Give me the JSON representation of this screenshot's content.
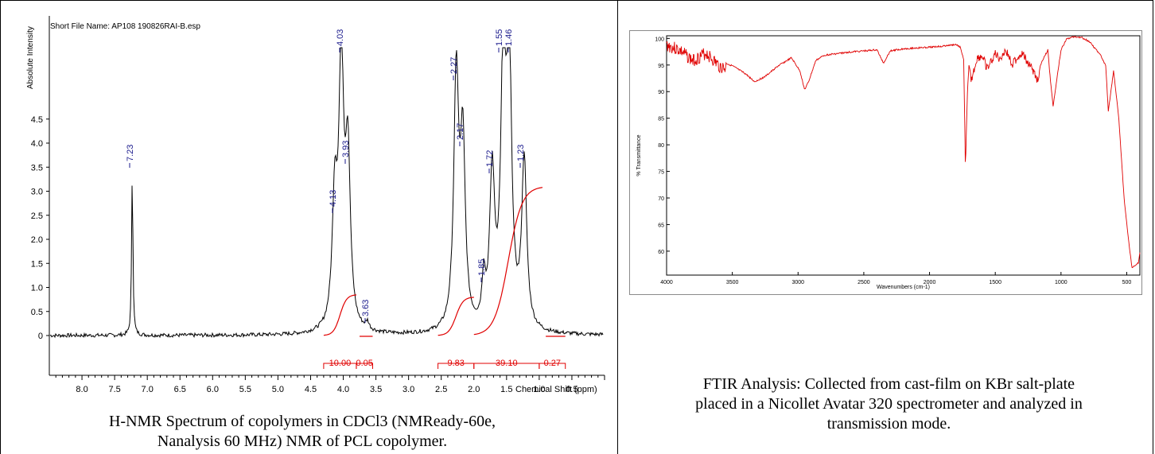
{
  "nmr": {
    "file_label": "Short File Name: AP108 190826RAI-B.esp",
    "ylabel": "Absolute Intensity",
    "xlabel": "Chemical Shift (ppm)",
    "caption_line1": "H-NMR Spectrum of copolymers in CDCl3 (NMReady-60e,",
    "caption_line2": "Nanalysis 60 MHz) NMR of PCL copolymer.",
    "colors": {
      "trace": "#000000",
      "integral": "#e00000",
      "peak_label": "#1a1a8c",
      "axis": "#000000"
    }
  },
  "ir": {
    "ylabel": "% Transmittance",
    "xlabel": "Wavenumbers (cm-1)",
    "caption_line1": "FTIR Analysis: Collected from cast-film on KBr salt-plate",
    "caption_line2": "placed in a Nicollet Avatar 320 spectrometer and analyzed in",
    "caption_line3": "transmission mode.",
    "colors": {
      "trace": "#e00000",
      "axis": "#000000"
    }
  },
  "chart_data": [
    {
      "type": "line",
      "title": "Short File Name: AP108 190826RAI-B.esp",
      "xlabel": "Chemical Shift (ppm)",
      "ylabel": "Absolute Intensity",
      "xlim": [
        8.5,
        0.0
      ],
      "ylim": [
        -0.3,
        5.0
      ],
      "x_reversed": true,
      "x_ticks": [
        "8.0",
        "7.5",
        "7.0",
        "6.5",
        "6.0",
        "5.5",
        "5.0",
        "4.5",
        "4.0",
        "3.5",
        "3.0",
        "2.5",
        "2.0",
        "1.5",
        "1.0",
        "0.5"
      ],
      "y_ticks": [
        "0",
        "0.5",
        "1.0",
        "1.5",
        "2.0",
        "2.5",
        "3.0",
        "3.5",
        "4.0",
        "4.5"
      ],
      "peaks": [
        {
          "label": "7.23",
          "ppm": 7.23,
          "height": 3.4
        },
        {
          "label": "4.13",
          "ppm": 4.13,
          "height": 2.6
        },
        {
          "label": "4.03",
          "ppm": 4.03,
          "height": 5.5
        },
        {
          "label": "3.93",
          "ppm": 3.93,
          "height": 3.5
        },
        {
          "label": "3.63",
          "ppm": 3.63,
          "height": 0.15
        },
        {
          "label": "2.27",
          "ppm": 2.27,
          "height": 5.25
        },
        {
          "label": "2.17",
          "ppm": 2.17,
          "height": 3.75
        },
        {
          "label": "1.85",
          "ppm": 1.85,
          "height": 0.95
        },
        {
          "label": "1.72",
          "ppm": 1.72,
          "height": 3.15
        },
        {
          "label": "1.55",
          "ppm": 1.55,
          "height": 5.5
        },
        {
          "label": "1.46",
          "ppm": 1.46,
          "height": 5.5
        },
        {
          "label": "1.23",
          "ppm": 1.23,
          "height": 3.5
        }
      ],
      "integrals": [
        {
          "label": "10.00",
          "from": 4.3,
          "to": 3.8
        },
        {
          "label": "0.05",
          "from": 3.8,
          "to": 3.55
        },
        {
          "label": "9.83",
          "from": 2.55,
          "to": 2.0
        },
        {
          "label": "39.10",
          "from": 2.0,
          "to": 1.0
        },
        {
          "label": "0.27",
          "from": 1.0,
          "to": 0.6
        }
      ],
      "grid": false
    },
    {
      "type": "line",
      "xlabel": "Wavenumbers (cm-1)",
      "ylabel": "% Transmittance",
      "xlim": [
        4000,
        400
      ],
      "ylim": [
        55.5,
        100.5
      ],
      "x_reversed": true,
      "x_ticks": [
        "4000",
        "3500",
        "3000",
        "2500",
        "2000",
        "1500",
        "1000",
        "500"
      ],
      "y_ticks": [
        "60",
        "65",
        "70",
        "75",
        "80",
        "85",
        "90",
        "95",
        "100"
      ],
      "series": [
        {
          "x": [
            4000,
            3900,
            3800,
            3700,
            3600,
            3500,
            3400,
            3330,
            3250,
            3150,
            3050,
            2985,
            2950,
            2920,
            2865,
            2800,
            2700,
            2600,
            2500,
            2400,
            2350,
            2300,
            2200,
            2000,
            1900,
            1800,
            1765,
            1740,
            1727,
            1712,
            1700,
            1680,
            1640,
            1600,
            1560,
            1500,
            1470,
            1420,
            1370,
            1300,
            1240,
            1180,
            1160,
            1100,
            1080,
            1060,
            1000,
            960,
            900,
            840,
            780,
            732,
            700,
            660,
            640,
            600,
            560,
            520,
            490,
            460,
            430,
            410,
            400
          ],
          "y": [
            100,
            99,
            97,
            98.5,
            96,
            95,
            93.5,
            92,
            93,
            95,
            96.5,
            94,
            90.5,
            92,
            96,
            97,
            97.3,
            97.6,
            97.8,
            98,
            95.5,
            97.8,
            98.2,
            98.5,
            98.7,
            99,
            98.5,
            96,
            75.5,
            90,
            95,
            93,
            97,
            97.5,
            95,
            98,
            97,
            98.5,
            96,
            98,
            96,
            93,
            95,
            98,
            92,
            87.5,
            98,
            100,
            100.5,
            100.3,
            99.5,
            98,
            97,
            95,
            86.5,
            94,
            85,
            70,
            63,
            57,
            57.5,
            58,
            60
          ]
        }
      ],
      "grid": false
    }
  ]
}
